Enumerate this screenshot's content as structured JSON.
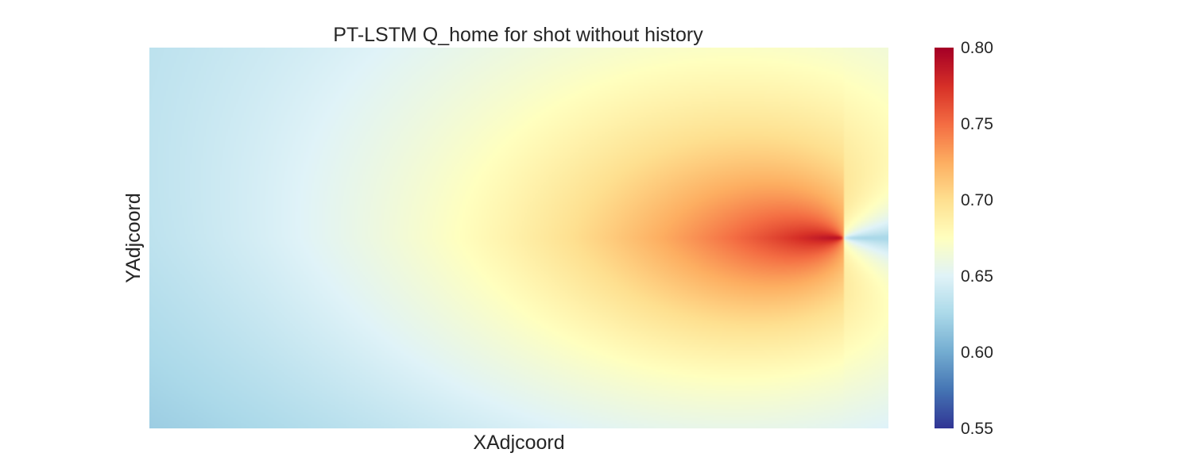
{
  "chart_data": {
    "type": "heatmap",
    "title": "PT-LSTM Q_home for shot without history",
    "xlabel": "XAdjcoord",
    "ylabel": "YAdjcoord",
    "colorbar": {
      "colormap": "RdYlBu_r",
      "vmin": 0.55,
      "vmax": 0.8,
      "ticks": [
        0.55,
        0.6,
        0.65,
        0.7,
        0.75,
        0.8
      ],
      "tick_labels": [
        "0.55",
        "0.60",
        "0.65",
        "0.70",
        "0.75",
        "0.80"
      ]
    },
    "x_ticks": [],
    "y_ticks": [],
    "grid": false,
    "value_summary": {
      "left_edge_bottom": 0.59,
      "left_edge_top": 0.61,
      "center": 0.67,
      "peak_near_goal": 0.79,
      "behind_goal": 0.63,
      "right_edge_corners": 0.68
    },
    "colors": {
      "stops": [
        "#313695",
        "#4575b4",
        "#74add1",
        "#abd9e9",
        "#e0f3f8",
        "#ffffbf",
        "#fee090",
        "#fdae61",
        "#f46d43",
        "#d73027",
        "#a50026"
      ]
    }
  }
}
